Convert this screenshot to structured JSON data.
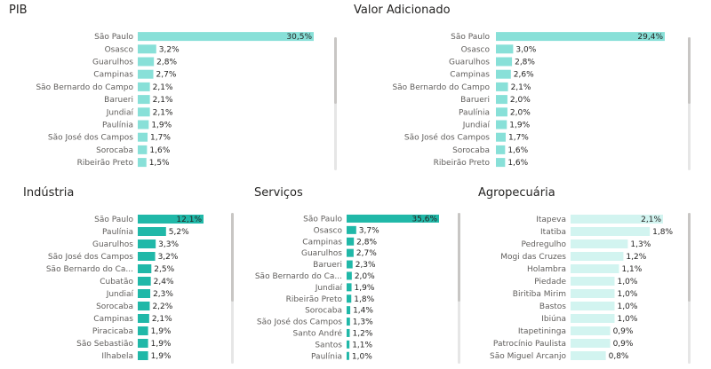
{
  "chart_data": [
    {
      "id": "pib",
      "type": "bar",
      "orientation": "horizontal",
      "title": "PIB",
      "color": "#88e0d8",
      "categories": [
        "São Paulo",
        "Osasco",
        "Guarulhos",
        "Campinas",
        "São Bernardo do Campo",
        "Barueri",
        "Jundiaí",
        "Paulínia",
        "São José dos Campos",
        "Sorocaba",
        "Ribeirão Preto"
      ],
      "values": [
        30.5,
        3.2,
        2.8,
        2.7,
        2.1,
        2.1,
        2.1,
        1.9,
        1.7,
        1.6,
        1.5
      ],
      "value_labels": [
        "30,5%",
        "3,2%",
        "2,8%",
        "2,7%",
        "2,1%",
        "2,1%",
        "2,1%",
        "1,9%",
        "1,7%",
        "1,6%",
        "1,5%"
      ]
    },
    {
      "id": "valor",
      "type": "bar",
      "orientation": "horizontal",
      "title": "Valor Adicionado",
      "color": "#88e0d8",
      "categories": [
        "São Paulo",
        "Osasco",
        "Guarulhos",
        "Campinas",
        "São Bernardo do Campo",
        "Barueri",
        "Paulínia",
        "Jundiaí",
        "São José dos Campos",
        "Sorocaba",
        "Ribeirão Preto"
      ],
      "values": [
        29.4,
        3.0,
        2.8,
        2.6,
        2.1,
        2.0,
        2.0,
        1.9,
        1.7,
        1.6,
        1.6
      ],
      "value_labels": [
        "29,4%",
        "3,0%",
        "2,8%",
        "2,6%",
        "2,1%",
        "2,0%",
        "2,0%",
        "1,9%",
        "1,7%",
        "1,6%",
        "1,6%"
      ]
    },
    {
      "id": "industria",
      "type": "bar",
      "orientation": "horizontal",
      "title": "Indústria",
      "color": "#20b8a8",
      "categories": [
        "São Paulo",
        "Paulínia",
        "Guarulhos",
        "São José dos Campos",
        "São Bernardo do Ca...",
        "Cubatão",
        "Jundiaí",
        "Sorocaba",
        "Campinas",
        "Piracicaba",
        "São Sebastião",
        "Ilhabela"
      ],
      "values": [
        12.1,
        5.2,
        3.3,
        3.2,
        2.5,
        2.4,
        2.3,
        2.2,
        2.1,
        1.9,
        1.9,
        1.9
      ],
      "value_labels": [
        "12,1%",
        "5,2%",
        "3,3%",
        "3,2%",
        "2,5%",
        "2,4%",
        "2,3%",
        "2,2%",
        "2,1%",
        "1,9%",
        "1,9%",
        "1,9%"
      ]
    },
    {
      "id": "servicos",
      "type": "bar",
      "orientation": "horizontal",
      "title": "Serviços",
      "color": "#20b8a8",
      "categories": [
        "São Paulo",
        "Osasco",
        "Campinas",
        "Guarulhos",
        "Barueri",
        "São Bernardo do Ca...",
        "Jundiaí",
        "Ribeirão Preto",
        "Sorocaba",
        "São José dos Campos",
        "Santo André",
        "Santos",
        "Paulínia"
      ],
      "values": [
        35.6,
        3.7,
        2.8,
        2.7,
        2.3,
        2.0,
        1.9,
        1.8,
        1.4,
        1.3,
        1.2,
        1.1,
        1.0
      ],
      "value_labels": [
        "35,6%",
        "3,7%",
        "2,8%",
        "2,7%",
        "2,3%",
        "2,0%",
        "1,9%",
        "1,8%",
        "1,4%",
        "1,3%",
        "1,2%",
        "1,1%",
        "1,0%"
      ]
    },
    {
      "id": "agro",
      "type": "bar",
      "orientation": "horizontal",
      "title": "Agropecuária",
      "color": "#d2f4f0",
      "categories": [
        "Itapeva",
        "Itatiba",
        "Pedregulho",
        "Mogi das Cruzes",
        "Holambra",
        "Piedade",
        "Biritiba Mirim",
        "Bastos",
        "Ibiúna",
        "Itapetininga",
        "Patrocínio Paulista",
        "São Miguel Arcanjo"
      ],
      "values": [
        2.1,
        1.8,
        1.3,
        1.2,
        1.1,
        1.0,
        1.0,
        1.0,
        1.0,
        0.9,
        0.9,
        0.8
      ],
      "value_labels": [
        "2,1%",
        "1,8%",
        "1,3%",
        "1,2%",
        "1,1%",
        "1,0%",
        "1,0%",
        "1,0%",
        "1,0%",
        "0,9%",
        "0,9%",
        "0,8%"
      ]
    }
  ]
}
